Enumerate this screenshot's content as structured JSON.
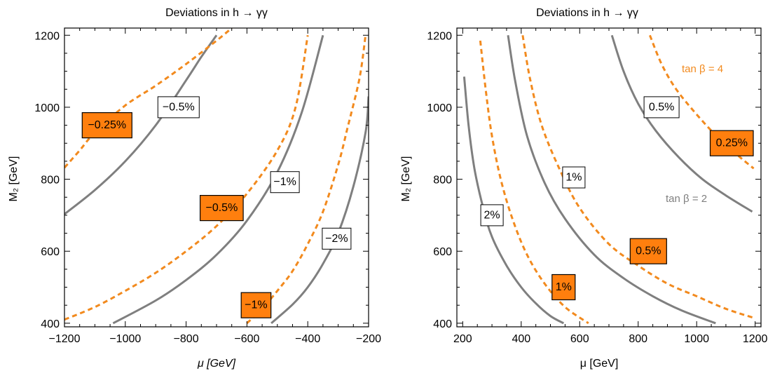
{
  "chart_data": [
    {
      "type": "line",
      "title": "Deviations in h → γγ",
      "xlabel": "μ [GeV]",
      "ylabel": "M₂ [GeV]",
      "xlim": [
        -1200,
        -200
      ],
      "ylim": [
        390,
        1220
      ],
      "xticks": [
        -1200,
        -1000,
        -800,
        -600,
        -400,
        -200
      ],
      "xtick_labels": [
        "−1200",
        "−1000",
        "−800",
        "−600",
        "−400",
        "−200"
      ],
      "yticks": [
        400,
        600,
        800,
        1000,
        1200
      ],
      "ytick_labels": [
        "400",
        "600",
        "800",
        "1000",
        "1200"
      ],
      "grid": false,
      "series": [
        {
          "style": "gray-solid",
          "x": [
            -1200,
            -1100,
            -1000,
            -900,
            -800,
            -750,
            -700
          ],
          "y": [
            703,
            770,
            850,
            950,
            1075,
            1140,
            1200
          ]
        },
        {
          "style": "gray-solid",
          "x": [
            -1040,
            -900,
            -800,
            -700,
            -600,
            -500,
            -420,
            -350
          ],
          "y": [
            400,
            463,
            520,
            590,
            685,
            820,
            985,
            1200
          ]
        },
        {
          "style": "gray-solid",
          "x": [
            -520,
            -450,
            -400,
            -350,
            -300,
            -250,
            -210,
            -200
          ],
          "y": [
            400,
            452,
            500,
            565,
            650,
            780,
            930,
            1030
          ]
        },
        {
          "style": "orange-dashed",
          "x": [
            -1200,
            -1150,
            -1100,
            -1000,
            -900,
            -800,
            -700,
            -650
          ],
          "y": [
            832,
            880,
            930,
            1005,
            1060,
            1120,
            1185,
            1220
          ]
        },
        {
          "style": "orange-dashed",
          "x": [
            -1200,
            -1100,
            -1000,
            -900,
            -800,
            -700,
            -600,
            -500,
            -440,
            -400
          ],
          "y": [
            410,
            445,
            490,
            540,
            600,
            670,
            760,
            880,
            1000,
            1200
          ]
        },
        {
          "style": "orange-dashed",
          "x": [
            -600,
            -550,
            -500,
            -450,
            -400,
            -350,
            -300,
            -270,
            -230,
            -210
          ],
          "y": [
            400,
            440,
            490,
            545,
            620,
            710,
            840,
            940,
            1080,
            1200
          ]
        }
      ],
      "labels": [
        {
          "text": "−0.5%",
          "x": -825,
          "y": 1000,
          "style": "white"
        },
        {
          "text": "−0.25%",
          "x": -1060,
          "y": 950,
          "style": "orange"
        },
        {
          "text": "−1%",
          "x": -475,
          "y": 792,
          "style": "white"
        },
        {
          "text": "−0.5%",
          "x": -683,
          "y": 720,
          "style": "orange"
        },
        {
          "text": "−2%",
          "x": -305,
          "y": 635,
          "style": "white"
        },
        {
          "text": "−1%",
          "x": -570,
          "y": 450,
          "style": "orange"
        }
      ]
    },
    {
      "type": "line",
      "title": "Deviations in h → γγ",
      "xlabel": "μ [GeV]",
      "ylabel": "M₂ [GeV]",
      "xlim": [
        180,
        1220
      ],
      "ylim": [
        390,
        1220
      ],
      "xticks": [
        200,
        400,
        600,
        800,
        1000,
        1200
      ],
      "xtick_labels": [
        "200",
        "400",
        "600",
        "800",
        "1000",
        "1200"
      ],
      "yticks": [
        400,
        600,
        800,
        1000,
        1200
      ],
      "ytick_labels": [
        "400",
        "600",
        "800",
        "1000",
        "1200"
      ],
      "grid": false,
      "legend_orange": "tan β = 4",
      "legend_gray": "tan β = 2",
      "series": [
        {
          "style": "gray-solid",
          "x": [
            205,
            220,
            240,
            270,
            300,
            350,
            400,
            450,
            500,
            545
          ],
          "y": [
            1085,
            950,
            830,
            720,
            640,
            560,
            500,
            455,
            420,
            400
          ]
        },
        {
          "style": "gray-solid",
          "x": [
            355,
            380,
            420,
            480,
            550,
            650,
            750,
            850,
            950,
            1065
          ],
          "y": [
            1200,
            1070,
            920,
            790,
            690,
            590,
            525,
            475,
            435,
            400
          ]
        },
        {
          "style": "gray-solid",
          "x": [
            710,
            750,
            800,
            860,
            940,
            1020,
            1100,
            1190
          ],
          "y": [
            1200,
            1100,
            1010,
            935,
            860,
            800,
            755,
            710
          ]
        },
        {
          "style": "orange-dashed",
          "x": [
            260,
            280,
            300,
            330,
            370,
            420,
            480,
            550,
            630
          ],
          "y": [
            1185,
            1040,
            920,
            800,
            690,
            590,
            510,
            445,
            400
          ]
        },
        {
          "style": "orange-dashed",
          "x": [
            405,
            430,
            470,
            530,
            600,
            700,
            800,
            900,
            1000,
            1100,
            1195
          ],
          "y": [
            1200,
            1080,
            950,
            830,
            720,
            620,
            560,
            510,
            475,
            440,
            415
          ]
        },
        {
          "style": "orange-dashed",
          "x": [
            840,
            880,
            930,
            1000,
            1080,
            1150,
            1195
          ],
          "y": [
            1200,
            1120,
            1050,
            980,
            910,
            860,
            830
          ]
        }
      ],
      "labels": [
        {
          "text": "0.5%",
          "x": 880,
          "y": 1000,
          "style": "white"
        },
        {
          "text": "0.25%",
          "x": 1120,
          "y": 900,
          "style": "orange"
        },
        {
          "text": "1%",
          "x": 580,
          "y": 805,
          "style": "white"
        },
        {
          "text": "2%",
          "x": 300,
          "y": 700,
          "style": "white"
        },
        {
          "text": "0.5%",
          "x": 835,
          "y": 600,
          "style": "orange"
        },
        {
          "text": "1%",
          "x": 545,
          "y": 500,
          "style": "orange"
        }
      ]
    }
  ]
}
